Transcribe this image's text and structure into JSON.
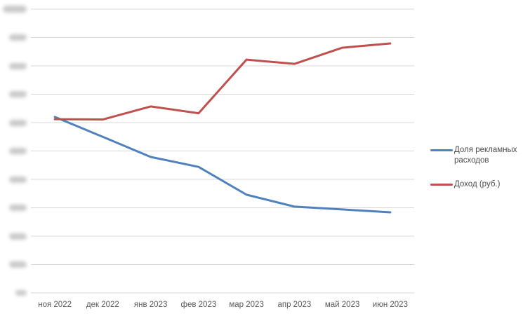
{
  "chart_data": {
    "type": "line",
    "title": "",
    "categories": [
      "ноя 2022",
      "дек 2022",
      "янв 2023",
      "фев 2023",
      "мар 2023",
      "апр 2023",
      "май 2023",
      "июн 2023"
    ],
    "series": [
      {
        "name": "Доля рекламных расходов",
        "color": "#4F81BD",
        "values": [
          6.2,
          5.5,
          4.79,
          4.44,
          3.46,
          3.04,
          2.94,
          2.84
        ]
      },
      {
        "name": "Доход (руб.)",
        "color": "#C0504D",
        "values": [
          6.12,
          6.11,
          6.57,
          6.33,
          8.22,
          8.07,
          8.64,
          8.79
        ]
      }
    ],
    "y_axis": {
      "min": 0,
      "max": 10,
      "gridlines": 11,
      "tick_labels_redacted": true
    },
    "x_axis": {
      "labels": [
        "ноя 2022",
        "дек 2022",
        "янв 2023",
        "фев 2023",
        "мар 2023",
        "апр 2023",
        "май 2023",
        "июн 2023"
      ]
    },
    "legend_position": "right",
    "grid": true
  },
  "colors": {
    "series1": "#4F81BD",
    "series2": "#C0504D",
    "gridline": "#D9D9D9",
    "axis_text": "#595959"
  }
}
